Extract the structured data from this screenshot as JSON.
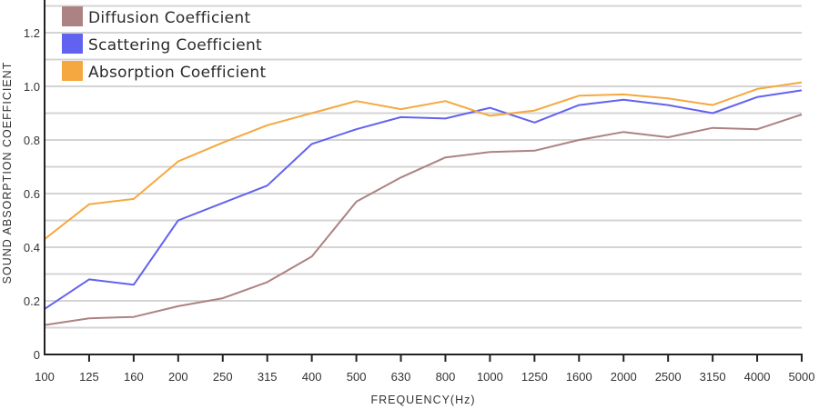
{
  "chart_data": {
    "type": "line",
    "title": "",
    "xlabel": "FREQUENCY(Hz)",
    "ylabel": "SOUND ABSORPTION COEFFICIENT",
    "categories": [
      "100",
      "125",
      "160",
      "200",
      "250",
      "315",
      "400",
      "500",
      "630",
      "800",
      "1000",
      "1250",
      "1600",
      "2000",
      "2500",
      "3150",
      "4000",
      "5000"
    ],
    "ylim": [
      0,
      1.3
    ],
    "yticks": [
      {
        "value": 0,
        "label": "0"
      },
      {
        "value": 0.2,
        "label": "0.2"
      },
      {
        "value": 0.4,
        "label": "0.4"
      },
      {
        "value": 0.6,
        "label": "0.6"
      },
      {
        "value": 0.8,
        "label": "0.8"
      },
      {
        "value": 1.0,
        "label": "1.0"
      },
      {
        "value": 1.2,
        "label": "1.2"
      }
    ],
    "grid_step": 0.1,
    "grid": true,
    "legend_position": "top-left",
    "series": [
      {
        "name": "Diffusion Coefficient",
        "color": "#ad8282",
        "values": [
          0.11,
          0.135,
          0.14,
          0.18,
          0.21,
          0.27,
          0.365,
          0.57,
          0.66,
          0.735,
          0.755,
          0.76,
          0.8,
          0.83,
          0.81,
          0.845,
          0.84,
          0.895
        ]
      },
      {
        "name": "Scattering Coefficient",
        "color": "#6262f0",
        "values": [
          0.17,
          0.28,
          0.26,
          0.5,
          0.565,
          0.63,
          0.785,
          0.84,
          0.885,
          0.88,
          0.92,
          0.865,
          0.93,
          0.95,
          0.93,
          0.9,
          0.96,
          0.985
        ]
      },
      {
        "name": "Absorption Coefficient",
        "color": "#f5a840",
        "values": [
          0.43,
          0.56,
          0.58,
          0.72,
          0.79,
          0.855,
          0.9,
          0.945,
          0.915,
          0.945,
          0.89,
          0.91,
          0.965,
          0.97,
          0.955,
          0.93,
          0.99,
          1.015
        ]
      }
    ]
  }
}
